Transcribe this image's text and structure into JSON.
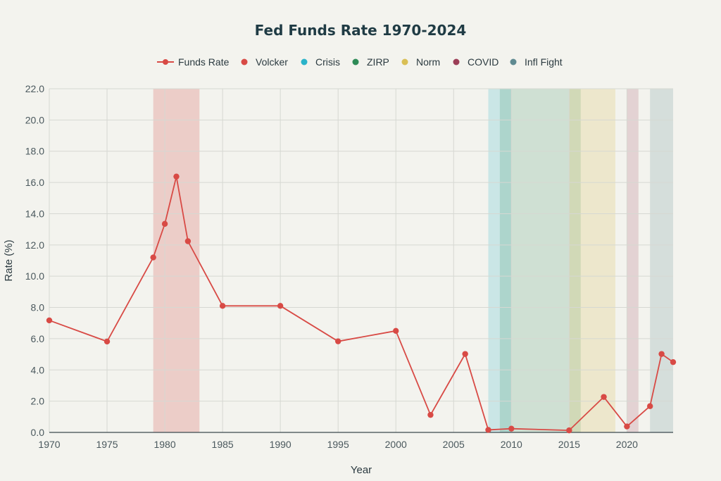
{
  "chart_data": {
    "type": "line",
    "title": "Fed Funds Rate 1970-2024",
    "xlabel": "Year",
    "ylabel": "Rate (%)",
    "xlim": [
      1970,
      2024
    ],
    "ylim": [
      0,
      22
    ],
    "x_ticks": [
      1970,
      1975,
      1980,
      1985,
      1990,
      1995,
      2000,
      2005,
      2010,
      2015,
      2020
    ],
    "y_ticks": [
      0,
      2,
      4,
      6,
      8,
      10,
      12,
      14,
      16,
      18,
      20,
      22
    ],
    "y_tick_labels": [
      "0.0",
      "2.0",
      "4.0",
      "6.0",
      "8.0",
      "10.0",
      "12.0",
      "14.0",
      "16.0",
      "18.0",
      "20.0",
      "22.0"
    ],
    "grid": true,
    "legend_position": "top",
    "series": [
      {
        "name": "Funds Rate",
        "color": "#d84a45",
        "x": [
          1970,
          1975,
          1979,
          1980,
          1981,
          1982,
          1985,
          1990,
          1995,
          2000,
          2003,
          2006,
          2008,
          2010,
          2015,
          2018,
          2020,
          2022,
          2023,
          2024
        ],
        "y": [
          7.17,
          5.82,
          11.2,
          13.35,
          16.38,
          12.24,
          8.1,
          8.1,
          5.83,
          6.5,
          1.12,
          5.02,
          0.16,
          0.24,
          0.13,
          2.27,
          0.38,
          1.68,
          5.02,
          4.5
        ]
      }
    ],
    "periods": [
      {
        "name": "Volcker",
        "color": "#d84a45",
        "start": 1979,
        "end": 1983,
        "opacity": 0.22
      },
      {
        "name": "Crisis",
        "color": "#2ab3c9",
        "start": 2008,
        "end": 2010,
        "opacity": 0.2
      },
      {
        "name": "ZIRP",
        "color": "#2e8b57",
        "start": 2009,
        "end": 2016,
        "opacity": 0.18
      },
      {
        "name": "Norm",
        "color": "#d9bf55",
        "start": 2015,
        "end": 2019,
        "opacity": 0.22
      },
      {
        "name": "COVID",
        "color": "#9c3e57",
        "start": 2020,
        "end": 2021,
        "opacity": 0.18
      },
      {
        "name": "Infl Fight",
        "color": "#5f8a91",
        "start": 2022,
        "end": 2024,
        "opacity": 0.2
      }
    ]
  }
}
